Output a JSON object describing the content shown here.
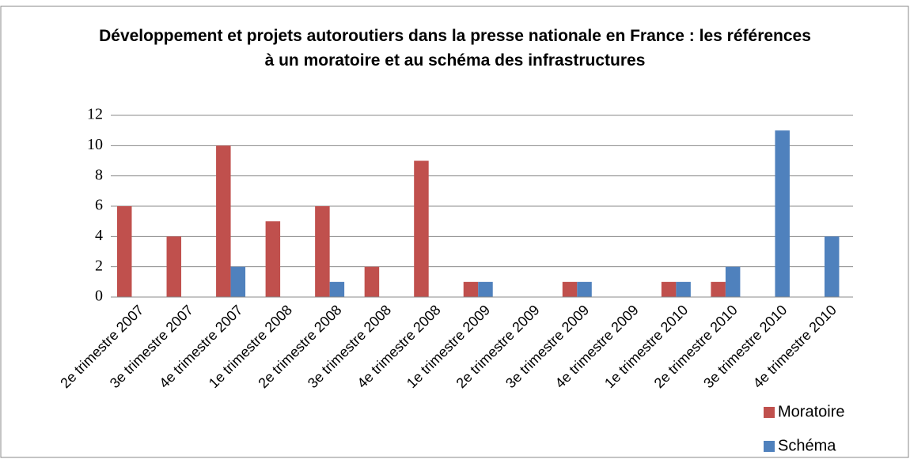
{
  "chart_data": {
    "type": "bar",
    "title": "Développement et projets autoroutiers dans la presse nationale en France : les références à un moratoire et au schéma des infrastructures",
    "categories": [
      "2e trimestre 2007",
      "3e trimestre 2007",
      "4e trimestre 2007",
      "1e trimestre 2008",
      "2e trimestre 2008",
      "3e trimestre 2008",
      "4e trimestre 2008",
      "1e trimestre 2009",
      "2e trimestre 2009",
      "3e trimestre 2009",
      "4e trimestre 2009",
      "1e trimestre 2010",
      "2e trimestre 2010",
      "3e trimestre 2010",
      "4e trimestre 2010"
    ],
    "series": [
      {
        "name": "Moratoire",
        "color": "#c0504d",
        "values": [
          6,
          4,
          10,
          5,
          6,
          2,
          9,
          1,
          0,
          1,
          0,
          1,
          1,
          0,
          0
        ]
      },
      {
        "name": "Schéma",
        "color": "#4f81bd",
        "values": [
          0,
          0,
          2,
          0,
          1,
          0,
          0,
          1,
          0,
          1,
          0,
          1,
          2,
          11,
          4
        ]
      }
    ],
    "ylim": [
      0,
      12
    ],
    "yticks": [
      0,
      2,
      4,
      6,
      8,
      10,
      12
    ],
    "grid": true
  }
}
